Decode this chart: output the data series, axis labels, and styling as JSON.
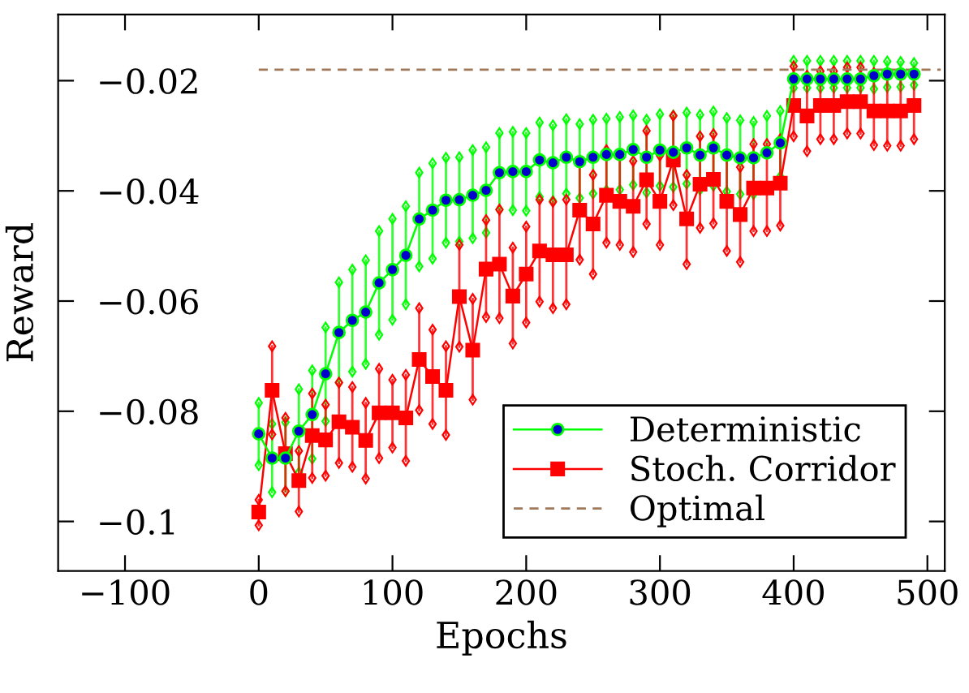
{
  "chart_data": {
    "type": "line",
    "xlabel": "Epochs",
    "ylabel": "Reward",
    "xlim": [
      -150,
      513
    ],
    "ylim": [
      -0.109,
      -0.008
    ],
    "xticks": [
      {
        "value": -100,
        "label": "−100"
      },
      0,
      100,
      200,
      300,
      400,
      500
    ],
    "yticks": [
      {
        "value": -0.1,
        "label": "−0.1"
      },
      {
        "value": -0.08,
        "label": "−0.08"
      },
      {
        "value": -0.06,
        "label": "−0.06"
      },
      {
        "value": -0.04,
        "label": "−0.04"
      },
      {
        "value": -0.02,
        "label": "−0.02"
      }
    ],
    "grid": false,
    "legend": "bottom right",
    "x": [
      0,
      10,
      20,
      30,
      40,
      50,
      60,
      70,
      80,
      90,
      100,
      110,
      120,
      130,
      140,
      150,
      160,
      170,
      180,
      190,
      200,
      210,
      220,
      230,
      240,
      250,
      260,
      270,
      280,
      290,
      300,
      310,
      320,
      330,
      340,
      350,
      360,
      370,
      380,
      390,
      400,
      410,
      420,
      430,
      440,
      450,
      460,
      470,
      480,
      490
    ],
    "series": [
      {
        "name": "Deterministic",
        "color": "#00ff00",
        "marker": "circle",
        "line_style": "solid",
        "values": [
          -0.0841,
          -0.0885,
          -0.0885,
          -0.0836,
          -0.0806,
          -0.0732,
          -0.0657,
          -0.0635,
          -0.062,
          -0.0567,
          -0.0543,
          -0.0517,
          -0.0451,
          -0.0435,
          -0.0417,
          -0.0416,
          -0.0408,
          -0.0399,
          -0.0367,
          -0.0365,
          -0.0365,
          -0.0344,
          -0.0349,
          -0.0339,
          -0.0347,
          -0.0339,
          -0.0334,
          -0.0334,
          -0.0325,
          -0.0339,
          -0.0326,
          -0.033,
          -0.0322,
          -0.0335,
          -0.0322,
          -0.0335,
          -0.034,
          -0.034,
          -0.0331,
          -0.0313,
          -0.0197,
          -0.0197,
          -0.0197,
          -0.0197,
          -0.0197,
          -0.0197,
          -0.0191,
          -0.0188,
          -0.0188,
          -0.0188
        ],
        "errors": [
          [
            -0.0898,
            -0.0785
          ],
          [
            -0.0947,
            -0.0823
          ],
          [
            -0.0945,
            -0.082
          ],
          [
            -0.0911,
            -0.076
          ],
          [
            -0.0886,
            -0.0726
          ],
          [
            -0.0818,
            -0.0648
          ],
          [
            -0.0748,
            -0.0566
          ],
          [
            -0.0728,
            -0.0543
          ],
          [
            -0.0714,
            -0.0526
          ],
          [
            -0.0661,
            -0.0473
          ],
          [
            -0.0634,
            -0.0451
          ],
          [
            -0.0606,
            -0.0428
          ],
          [
            -0.0537,
            -0.0367
          ],
          [
            -0.0523,
            -0.035
          ],
          [
            -0.0494,
            -0.034
          ],
          [
            -0.0492,
            -0.0339
          ],
          [
            -0.0486,
            -0.0326
          ],
          [
            -0.0476,
            -0.0321
          ],
          [
            -0.0434,
            -0.0295
          ],
          [
            -0.0435,
            -0.0293
          ],
          [
            -0.0436,
            -0.0295
          ],
          [
            -0.0411,
            -0.0276
          ],
          [
            -0.0418,
            -0.0281
          ],
          [
            -0.0405,
            -0.027
          ],
          [
            -0.0413,
            -0.0279
          ],
          [
            -0.0405,
            -0.0271
          ],
          [
            -0.0399,
            -0.0269
          ],
          [
            -0.0398,
            -0.0266
          ],
          [
            -0.0389,
            -0.0263
          ],
          [
            -0.0403,
            -0.0271
          ],
          [
            -0.0391,
            -0.0261
          ],
          [
            -0.0393,
            -0.0263
          ],
          [
            -0.0387,
            -0.0258
          ],
          [
            -0.0398,
            -0.0262
          ],
          [
            -0.0391,
            -0.0256
          ],
          [
            -0.0401,
            -0.0268
          ],
          [
            -0.0406,
            -0.0272
          ],
          [
            -0.0406,
            -0.0275
          ],
          [
            -0.0331,
            -0.0264
          ],
          [
            -0.0374,
            -0.0255
          ],
          [
            -0.0213,
            -0.0164
          ],
          [
            -0.0213,
            -0.0164
          ],
          [
            -0.0213,
            -0.0164
          ],
          [
            -0.0213,
            -0.0164
          ],
          [
            -0.0213,
            -0.0164
          ],
          [
            -0.0213,
            -0.0164
          ],
          [
            -0.0215,
            -0.0164
          ],
          [
            -0.0212,
            -0.0165
          ],
          [
            -0.0211,
            -0.0166
          ],
          [
            -0.0208,
            -0.0168
          ]
        ]
      },
      {
        "name": "Stoch. Corridor",
        "color": "#ff0000",
        "marker": "square",
        "line_style": "solid",
        "values": [
          -0.0983,
          -0.0762,
          -0.0877,
          -0.0926,
          -0.0844,
          -0.0852,
          -0.0819,
          -0.0829,
          -0.0853,
          -0.0803,
          -0.0803,
          -0.0812,
          -0.0706,
          -0.0737,
          -0.0762,
          -0.0592,
          -0.0689,
          -0.0542,
          -0.0533,
          -0.0591,
          -0.0551,
          -0.0509,
          -0.0516,
          -0.0516,
          -0.0435,
          -0.046,
          -0.0408,
          -0.0419,
          -0.0428,
          -0.038,
          -0.0419,
          -0.0344,
          -0.0451,
          -0.0388,
          -0.0379,
          -0.0419,
          -0.0443,
          -0.0395,
          -0.0395,
          -0.0386,
          -0.0245,
          -0.0264,
          -0.0245,
          -0.0245,
          -0.0238,
          -0.0238,
          -0.0255,
          -0.0255,
          -0.0255,
          -0.0245
        ],
        "errors": [
          [
            -0.1007,
            -0.0961
          ],
          [
            -0.0842,
            -0.0682
          ],
          [
            -0.0945,
            -0.0812
          ],
          [
            -0.0982,
            -0.0872
          ],
          [
            -0.0921,
            -0.0768
          ],
          [
            -0.0917,
            -0.0788
          ],
          [
            -0.0894,
            -0.0748
          ],
          [
            -0.0901,
            -0.0756
          ],
          [
            -0.0922,
            -0.0785
          ],
          [
            -0.0885,
            -0.0723
          ],
          [
            -0.0866,
            -0.0743
          ],
          [
            -0.089,
            -0.0734
          ],
          [
            -0.0798,
            -0.0613
          ],
          [
            -0.0823,
            -0.0652
          ],
          [
            -0.0843,
            -0.0682
          ],
          [
            -0.0683,
            -0.0498
          ],
          [
            -0.0779,
            -0.0596
          ],
          [
            -0.0629,
            -0.0453
          ],
          [
            -0.0631,
            -0.0434
          ],
          [
            -0.0677,
            -0.0503
          ],
          [
            -0.0639,
            -0.0465
          ],
          [
            -0.0601,
            -0.0416
          ],
          [
            -0.0613,
            -0.042
          ],
          [
            -0.0606,
            -0.0416
          ],
          [
            -0.0525,
            -0.0347
          ],
          [
            -0.0551,
            -0.0371
          ],
          [
            -0.0494,
            -0.0326
          ],
          [
            -0.0498,
            -0.0336
          ],
          [
            -0.0511,
            -0.0346
          ],
          [
            -0.046,
            -0.0291
          ],
          [
            -0.0498,
            -0.0336
          ],
          [
            -0.0426,
            -0.0264
          ],
          [
            -0.0533,
            -0.0371
          ],
          [
            -0.0467,
            -0.0301
          ],
          [
            -0.0459,
            -0.0297
          ],
          [
            -0.0509,
            -0.0338
          ],
          [
            -0.0529,
            -0.0357
          ],
          [
            -0.0473,
            -0.0315
          ],
          [
            -0.0473,
            -0.0315
          ],
          [
            -0.0463,
            -0.0306
          ],
          [
            -0.0301,
            -0.0174
          ],
          [
            -0.0328,
            -0.0191
          ],
          [
            -0.0306,
            -0.0183
          ],
          [
            -0.0306,
            -0.0183
          ],
          [
            -0.0296,
            -0.0176
          ],
          [
            -0.0296,
            -0.0176
          ],
          [
            -0.0317,
            -0.0186
          ],
          [
            -0.0318,
            -0.0188
          ],
          [
            -0.0318,
            -0.0188
          ],
          [
            -0.0306,
            -0.0185
          ]
        ]
      },
      {
        "name": "Optimal",
        "color": "#a0785a",
        "marker": "none",
        "line_style": "dashed",
        "x": [
          0,
          510
        ],
        "values": [
          -0.018,
          -0.018
        ]
      }
    ]
  }
}
